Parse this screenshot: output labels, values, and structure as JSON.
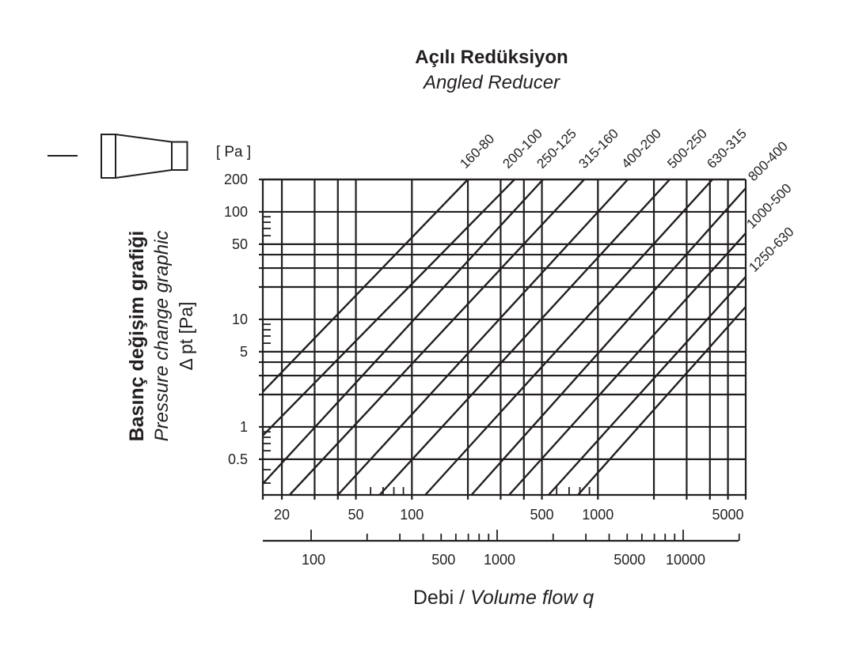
{
  "chart_data": {
    "type": "line",
    "title": "Açılı Redüksiyon",
    "subtitle": "Angled Reducer",
    "ylabel_lines": [
      "Basınç değişim grafiği",
      "Pressure change graphic",
      "Δ pt [Pa]"
    ],
    "yunit": "[ Pa ]",
    "xlabel_prefix": "Debi / ",
    "xlabel_italic": "Volume flow q",
    "x_scale": "log",
    "y_scale": "log",
    "xlim": [
      15.8,
      6230
    ],
    "ylim": [
      0.233,
      200
    ],
    "grid": true,
    "x_grid": [
      20,
      30,
      40,
      50,
      100,
      200,
      300,
      400,
      500,
      1000,
      2000,
      3000,
      4000,
      5000
    ],
    "y_grid": [
      200,
      100,
      50,
      40,
      30,
      20,
      10,
      5,
      4,
      3,
      2,
      1,
      0.5
    ],
    "x_tick_labels": [
      "20",
      "50",
      "100",
      "500",
      "1000",
      "5000"
    ],
    "y_tick_labels": [
      "200",
      "100",
      "50",
      "10",
      "5",
      "1",
      "0.5"
    ],
    "x_minor_inner_ticks": [
      60,
      70,
      80,
      90,
      600,
      700,
      800,
      900
    ],
    "y_minor_inner_ticks": [
      60,
      70,
      80,
      90,
      6,
      7,
      8,
      9,
      0.6,
      0.7,
      0.8,
      0.9,
      0.3,
      0.4
    ],
    "secondary_x_axis": {
      "scale": "log",
      "ticks": [
        100,
        200,
        300,
        400,
        500,
        600,
        700,
        800,
        900,
        1000,
        2000,
        3000,
        4000,
        5000,
        6000,
        7000,
        8000,
        9000,
        10000,
        20000
      ],
      "tick_labels": [
        "100",
        "500",
        "1000",
        "5000",
        "10000"
      ]
    },
    "series": [
      {
        "name": "160-80",
        "points": [
          [
            15.8,
            2.12
          ],
          [
            200,
            200
          ]
        ]
      },
      {
        "name": "200-100",
        "points": [
          [
            15.8,
            0.83
          ],
          [
            356,
            200
          ]
        ]
      },
      {
        "name": "250-125",
        "points": [
          [
            15.8,
            0.296
          ],
          [
            507,
            200
          ]
        ]
      },
      {
        "name": "315-160",
        "points": [
          [
            22,
            0.233
          ],
          [
            844,
            200
          ]
        ]
      },
      {
        "name": "400-200",
        "points": [
          [
            40,
            0.233
          ],
          [
            1448,
            200
          ]
        ]
      },
      {
        "name": "500-250",
        "points": [
          [
            67,
            0.233
          ],
          [
            2432,
            200
          ]
        ]
      },
      {
        "name": "630-315",
        "points": [
          [
            118,
            0.233
          ],
          [
            4130,
            200
          ]
        ]
      },
      {
        "name": "800-400",
        "points": [
          [
            209,
            0.233
          ],
          [
            6230,
            166
          ]
        ]
      },
      {
        "name": "1000-500",
        "points": [
          [
            333,
            0.233
          ],
          [
            6230,
            63.3
          ]
        ]
      },
      {
        "name": "1250-630",
        "points": [
          [
            543,
            0.233
          ],
          [
            6230,
            24.9
          ]
        ]
      },
      {
        "name": "",
        "points": [
          [
            781,
            0.233
          ],
          [
            6230,
            13.1
          ]
        ]
      }
    ]
  },
  "colors": {
    "ink": "#231f20",
    "background": "#ffffff"
  },
  "icon": "angled-reducer-icon"
}
